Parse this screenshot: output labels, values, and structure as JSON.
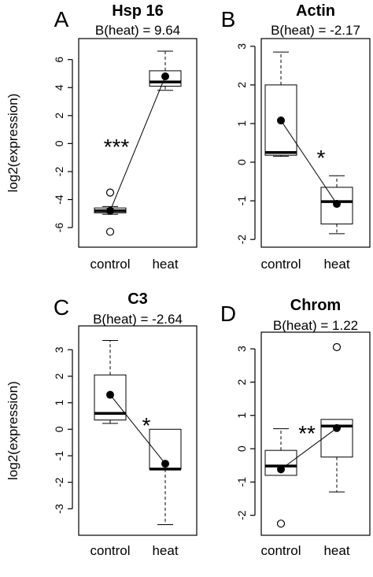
{
  "chart_data": [
    {
      "type": "box",
      "panel_letter": "A",
      "title": "Hsp 16",
      "subtitle": "B(heat) = 9.64",
      "ylabel": "log2(expression)",
      "categories": [
        "control",
        "heat"
      ],
      "yticks": [
        "-6",
        "-4",
        "-2",
        "0",
        "2",
        "4",
        "6"
      ],
      "ylim": [
        -7.4,
        7.5
      ],
      "boxes": [
        {
          "whisker_low": -5.05,
          "q1": -4.95,
          "median": -4.8,
          "q3": -4.6,
          "whisker_high": -4.5,
          "outliers": [
            -3.5,
            -6.3
          ]
        },
        {
          "whisker_low": 3.8,
          "q1": 4.1,
          "median": 4.4,
          "q3": 5.2,
          "whisker_high": 6.6,
          "outliers": []
        }
      ],
      "means": [
        -4.8,
        4.8
      ],
      "significance": "***"
    },
    {
      "type": "box",
      "panel_letter": "B",
      "title": "Actin",
      "subtitle": "B(heat) = -2.17",
      "ylabel": "",
      "categories": [
        "control",
        "heat"
      ],
      "yticks": [
        "-2",
        "-1",
        "0",
        "1",
        "2",
        "3"
      ],
      "ylim": [
        -2.2,
        3.2
      ],
      "boxes": [
        {
          "whisker_low": 0.15,
          "q1": 0.18,
          "median": 0.25,
          "q3": 2.0,
          "whisker_high": 2.85,
          "outliers": []
        },
        {
          "whisker_low": -1.85,
          "q1": -1.6,
          "median": -1.02,
          "q3": -0.65,
          "whisker_high": -0.35,
          "outliers": []
        }
      ],
      "means": [
        1.08,
        -1.08
      ],
      "significance": "*"
    },
    {
      "type": "box",
      "panel_letter": "C",
      "title": "C3",
      "subtitle": "B(heat) = -2.64",
      "ylabel": "log2(expression)",
      "categories": [
        "control",
        "heat"
      ],
      "yticks": [
        "-3",
        "-2",
        "-1",
        "0",
        "1",
        "2",
        "3"
      ],
      "ylim": [
        -4.0,
        3.9
      ],
      "boxes": [
        {
          "whisker_low": 0.22,
          "q1": 0.35,
          "median": 0.6,
          "q3": 2.05,
          "whisker_high": 3.35,
          "outliers": []
        },
        {
          "whisker_low": -3.6,
          "q1": -1.5,
          "median": -1.5,
          "q3": 0.0,
          "whisker_high": 0.0,
          "outliers": []
        }
      ],
      "means": [
        1.3,
        -1.3
      ],
      "significance": "*"
    },
    {
      "type": "box",
      "panel_letter": "D",
      "title": "Chrom",
      "subtitle": "B(heat) = 1.22",
      "ylabel": "",
      "categories": [
        "control",
        "heat"
      ],
      "yticks": [
        "-2",
        "-1",
        "0",
        "1",
        "2",
        "3"
      ],
      "ylim": [
        -2.6,
        3.5
      ],
      "boxes": [
        {
          "whisker_low": -0.8,
          "q1": -0.8,
          "median": -0.52,
          "q3": -0.05,
          "whisker_high": 0.6,
          "outliers": [
            -2.25
          ]
        },
        {
          "whisker_low": -1.3,
          "q1": -0.25,
          "median": 0.68,
          "q3": 0.88,
          "whisker_high": 0.88,
          "outliers": [
            3.05
          ]
        }
      ],
      "means": [
        -0.62,
        0.62
      ],
      "significance": "**"
    }
  ]
}
